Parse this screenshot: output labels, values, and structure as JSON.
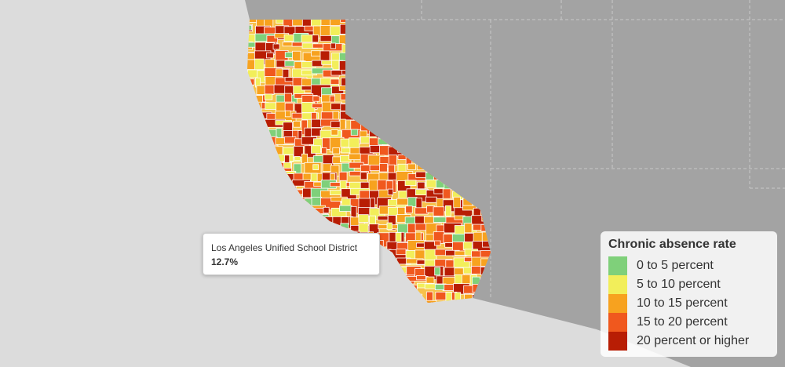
{
  "tooltip": {
    "name": "Los Angeles Unified School District",
    "value": "12.7%"
  },
  "legend": {
    "title": "Chronic absence rate",
    "items": [
      {
        "label": "0 to 5 percent",
        "color": "#7fd07a"
      },
      {
        "label": "5 to 10 percent",
        "color": "#f2ee5a"
      },
      {
        "label": "10 to 15 percent",
        "color": "#f7a21f"
      },
      {
        "label": "15 to 20 percent",
        "color": "#f0581e"
      },
      {
        "label": "20 percent or higher",
        "color": "#b81d04"
      }
    ]
  }
}
